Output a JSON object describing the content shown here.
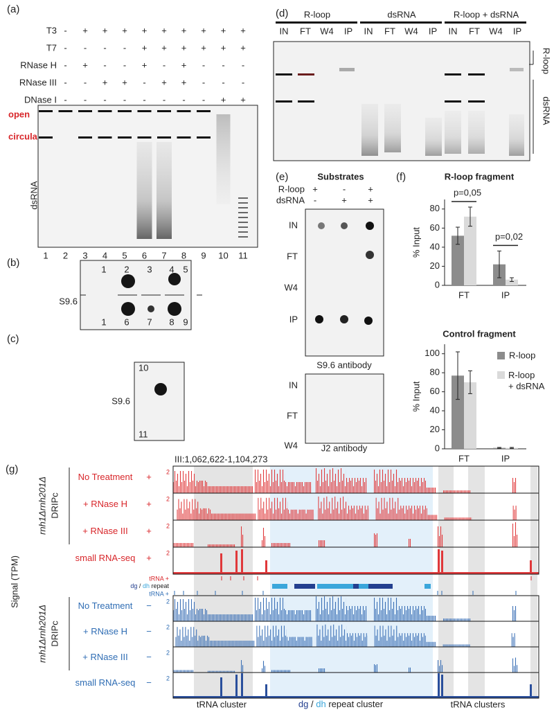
{
  "panel_a": {
    "label": "(a)",
    "rows": [
      {
        "name": "T3",
        "values": [
          "-",
          "+",
          "+",
          "+",
          "+",
          "+",
          "+",
          "+",
          "+",
          "+"
        ]
      },
      {
        "name": "T7",
        "values": [
          "-",
          "-",
          "-",
          "-",
          "+",
          "+",
          "+",
          "+",
          "+",
          "+"
        ]
      },
      {
        "name": "RNase H",
        "values": [
          "-",
          "+",
          "-",
          "-",
          "+",
          "-",
          "+",
          "-",
          "-",
          "-"
        ]
      },
      {
        "name": "RNase III",
        "values": [
          "-",
          "-",
          "+",
          "+",
          "-",
          "+",
          "+",
          "-",
          "-",
          "-"
        ]
      },
      {
        "name": "DNase I",
        "values": [
          "-",
          "-",
          "-",
          "-",
          "-",
          "-",
          "-",
          "-",
          "+",
          "+"
        ]
      }
    ],
    "bands": [
      "open",
      "circular"
    ],
    "region": "dsRNA",
    "lanes": [
      "1",
      "2",
      "3",
      "4",
      "5",
      "6",
      "7",
      "8",
      "9",
      "10",
      "11"
    ]
  },
  "panel_b": {
    "label": "(b)",
    "antibody": "S9.6",
    "top": [
      "1",
      "2",
      "3",
      "4",
      "5"
    ],
    "bottom": [
      "1",
      "6",
      "7",
      "8",
      "9"
    ]
  },
  "panel_c": {
    "label": "(c)",
    "antibody": "S9.6",
    "top": "10",
    "bottom": "11"
  },
  "panel_d": {
    "label": "(d)",
    "groups": [
      "R-loop",
      "dsRNA",
      "R-loop + dsRNA"
    ],
    "lanes": [
      "IN",
      "FT",
      "W4",
      "IP"
    ],
    "side": [
      "R-loop",
      "dsRNA"
    ]
  },
  "panel_e": {
    "label": "(e)",
    "title": "Substrates",
    "substrates": [
      {
        "name": "R-loop",
        "values": [
          "+",
          "-",
          "+"
        ]
      },
      {
        "name": "dsRNA",
        "values": [
          "-",
          "+",
          "+"
        ]
      }
    ],
    "rows": [
      "IN",
      "FT",
      "W4",
      "IP"
    ],
    "antibodies": [
      "S9.6 antibody",
      "J2 antibody"
    ]
  },
  "panel_f": {
    "label": "(f)",
    "y_label": "% Input",
    "legend": [
      {
        "name": "R-loop",
        "color": "#8c8c8c"
      },
      {
        "name": "R-loop\n+ dsRNA",
        "color": "#dadada"
      }
    ],
    "charts": [
      {
        "type": "bar",
        "title": "R-loop fragment",
        "categories": [
          "FT",
          "IP"
        ],
        "ylim": [
          0,
          90
        ],
        "yticks": [
          0,
          20,
          40,
          60,
          80
        ],
        "series": [
          {
            "values": [
              52,
              22
            ],
            "errors": [
              9,
              14
            ]
          },
          {
            "values": [
              72,
              6
            ],
            "errors": [
              10,
              2
            ]
          }
        ],
        "annotations": [
          "p=0,05",
          "p=0,02"
        ]
      },
      {
        "type": "bar",
        "title": "Control fragment",
        "categories": [
          "FT",
          "IP"
        ],
        "ylim": [
          0,
          110
        ],
        "yticks": [
          0,
          20,
          40,
          60,
          80,
          100
        ],
        "series": [
          {
            "values": [
              77,
              1
            ],
            "errors": [
              25,
              0.5
            ]
          },
          {
            "values": [
              70,
              1
            ],
            "errors": [
              12,
              0.5
            ]
          }
        ]
      }
    ]
  },
  "panel_g": {
    "label": "(g)",
    "coordinates": "III:1,062,622-1,104,273",
    "y_label": "Signal (TPM)",
    "strain": "rnh1Δrnh201Δ",
    "method": "DRIPc",
    "scale": "2",
    "top_tracks": [
      {
        "name": "No Treatment",
        "strand": "+"
      },
      {
        "name": "+ RNase H",
        "strand": "+"
      },
      {
        "name": "+ RNase III",
        "strand": "+"
      },
      {
        "name": "small RNA-seq",
        "strand": "+"
      }
    ],
    "bottom_tracks": [
      {
        "name": "No Treatment",
        "strand": "−"
      },
      {
        "name": "+ RNase H",
        "strand": "−"
      },
      {
        "name": "+ RNase III",
        "strand": "−"
      },
      {
        "name": "small RNA-seq",
        "strand": "−"
      }
    ],
    "annotation": {
      "trna_top": "tRNA +",
      "repeat": [
        "dg",
        "/",
        "dh",
        "repeat"
      ],
      "trna_bottom": "tRNA +"
    },
    "regions": {
      "left": "tRNA cluster",
      "middle": [
        "dg",
        "/",
        "dh",
        "repeat cluster"
      ],
      "right": "tRNA clusters"
    }
  }
}
